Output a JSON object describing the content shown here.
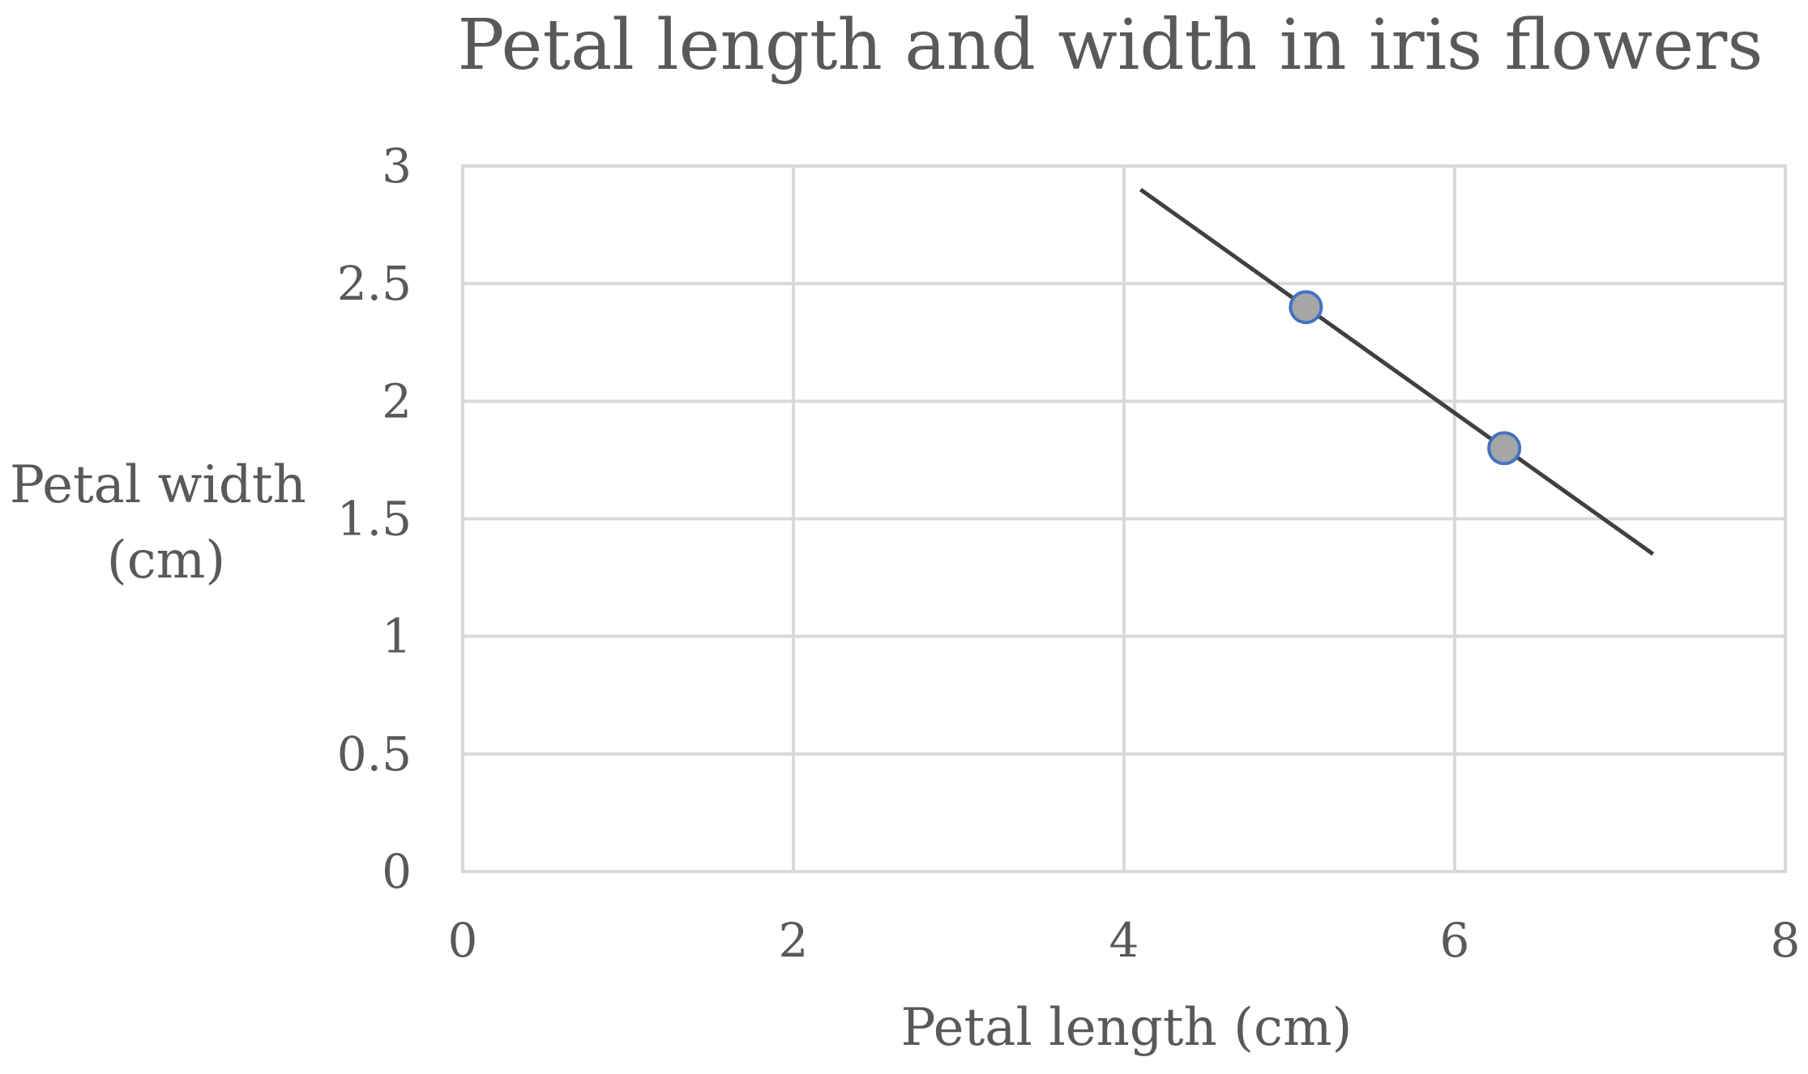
{
  "chart_data": {
    "type": "scatter",
    "title": "Petal length and width in iris flowers",
    "xlabel": "Petal length (cm)",
    "ylabel": [
      "Petal width",
      "(cm)"
    ],
    "xlim": [
      0,
      8
    ],
    "ylim": [
      0,
      3
    ],
    "x_ticks": [
      "0",
      "2",
      "4",
      "6",
      "8"
    ],
    "y_ticks": [
      "0",
      "0.5",
      "1",
      "1.5",
      "2",
      "2.5",
      "3"
    ],
    "grid": true,
    "legend": "none",
    "points": [
      {
        "x": 5.1,
        "y": 2.4
      },
      {
        "x": 6.3,
        "y": 1.8
      }
    ],
    "trendline": {
      "type": "linear",
      "from": {
        "x": 4.1,
        "y": 2.9
      },
      "to": {
        "x": 7.2,
        "y": 1.35
      }
    },
    "colors": {
      "point_fill": "#a6a6a6",
      "point_stroke": "#4472c4",
      "trendline": "#404040",
      "grid": "#d9d9d9",
      "text": "#595959"
    }
  }
}
